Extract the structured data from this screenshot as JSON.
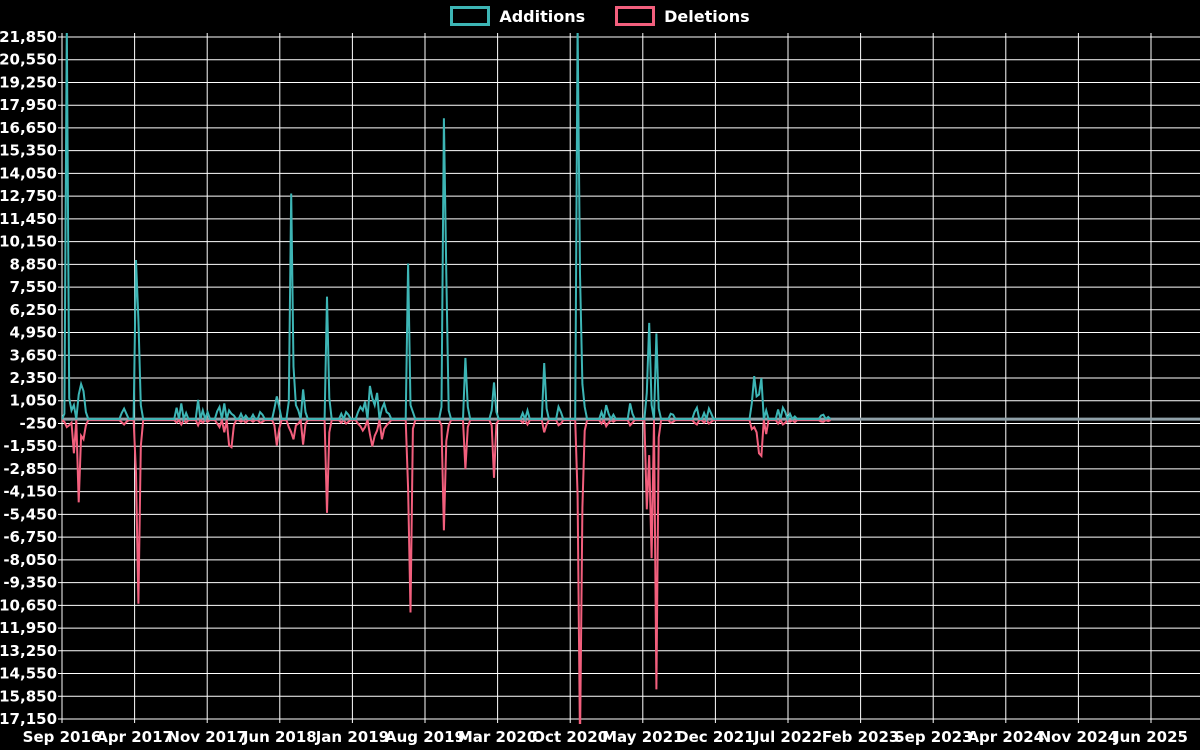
{
  "legend": [
    {
      "id": "additions",
      "label": "Additions",
      "color": "#3db5b5"
    },
    {
      "id": "deletions",
      "label": "Deletions",
      "color": "#f25f7d"
    }
  ],
  "chart_data": {
    "type": "line",
    "title": "",
    "xlabel": "",
    "ylabel": "",
    "background_color": "#000000",
    "grid_color": "#ffffff",
    "text_color": "#ffffff",
    "zero_line_color": "#8fa0a8",
    "legend_position": "top-center",
    "grid": "on",
    "x_tick_labels": [
      "Sep 2016",
      "Apr 2017",
      "Nov 2017",
      "Jun 2018",
      "Jan 2019",
      "Aug 2019",
      "Mar 2020",
      "Oct 2020",
      "May 2021",
      "Dec 2021",
      "Jul 2022",
      "Feb 2023",
      "Sep 2023",
      "Apr 2024",
      "Nov 2024",
      "Jun 2025"
    ],
    "x_tick_interval_months": 7,
    "y_ticks": [
      21850,
      20550,
      19250,
      17950,
      16650,
      15350,
      14050,
      12750,
      11450,
      10150,
      8850,
      7550,
      6250,
      4950,
      3650,
      2350,
      1050,
      -250,
      -1550,
      -2850,
      -4150,
      -5450,
      -6750,
      -8050,
      -9350,
      -10650,
      -11950,
      -13250,
      -14550,
      -15850,
      -17150
    ],
    "y_tick_labels": [
      "21,850",
      "20,550",
      "19,250",
      "17,950",
      "16,650",
      "15,350",
      "14,050",
      "12,750",
      "11,450",
      "10,150",
      "8,850",
      "7,550",
      "6,250",
      "4,950",
      "3,650",
      "2,350",
      "1,050",
      "-250",
      "-1,550",
      "-2,850",
      "-4,150",
      "-5,450",
      "-6,750",
      "-8,050",
      "-9,350",
      "-10,650",
      "-11,950",
      "-13,250",
      "-14,550",
      "-15,850",
      "-17,150"
    ],
    "ylim": [
      -17150,
      21850
    ],
    "note": "Weekly series; values beyond ylim are clipped at plot edges. Baseline is 0 between events; series data ends ~month 74, grey zero line continues to right edge.",
    "x_unit": "months_since_Sep_2016",
    "baseline_end_month": 74.2,
    "series_names": [
      "Additions",
      "Deletions"
    ],
    "columns": [
      "month_offset",
      "additions",
      "deletions"
    ],
    "events": [
      [
        0.29,
        300,
        -100
      ],
      [
        0.48,
        22500,
        -400
      ],
      [
        0.68,
        1200,
        -300
      ],
      [
        0.96,
        500,
        -150
      ],
      [
        1.25,
        800,
        -1900
      ],
      [
        1.54,
        1400,
        -4700
      ],
      [
        1.74,
        2000,
        -900
      ],
      [
        2.02,
        1600,
        -1100
      ],
      [
        2.31,
        400,
        -300
      ],
      [
        5.69,
        350,
        -120
      ],
      [
        5.98,
        600,
        -250
      ],
      [
        6.17,
        300,
        -100
      ],
      [
        7.04,
        700,
        -300
      ],
      [
        7.13,
        9100,
        -3000
      ],
      [
        7.33,
        5700,
        -10500
      ],
      [
        7.52,
        800,
        -1500
      ],
      [
        11.09,
        650,
        -150
      ],
      [
        11.47,
        900,
        -250
      ],
      [
        11.86,
        350,
        -150
      ],
      [
        13.21,
        1100,
        -300
      ],
      [
        13.6,
        500,
        -150
      ],
      [
        13.98,
        400,
        -100
      ],
      [
        14.85,
        450,
        -200
      ],
      [
        15.23,
        700,
        -400
      ],
      [
        15.62,
        900,
        -700
      ],
      [
        16.01,
        500,
        -1450
      ],
      [
        16.3,
        300,
        -1550
      ],
      [
        16.59,
        200,
        -300
      ],
      [
        17.36,
        300,
        -100
      ],
      [
        17.74,
        200,
        -150
      ],
      [
        18.32,
        250,
        -100
      ],
      [
        19.09,
        400,
        -150
      ],
      [
        19.38,
        250,
        -100
      ],
      [
        20.44,
        600,
        -300
      ],
      [
        20.73,
        1300,
        -1450
      ],
      [
        21.02,
        700,
        -500
      ],
      [
        21.89,
        1000,
        -400
      ],
      [
        22.08,
        12900,
        -700
      ],
      [
        22.27,
        3000,
        -1100
      ],
      [
        22.56,
        800,
        -300
      ],
      [
        22.85,
        500,
        -200
      ],
      [
        23.14,
        1700,
        -1400
      ],
      [
        23.43,
        400,
        -200
      ],
      [
        25.46,
        900,
        -400
      ],
      [
        25.65,
        7000,
        -5300
      ],
      [
        25.84,
        1200,
        -700
      ],
      [
        26.9,
        300,
        -150
      ],
      [
        27.29,
        400,
        -200
      ],
      [
        27.67,
        250,
        -100
      ],
      [
        28.45,
        400,
        -200
      ],
      [
        28.73,
        700,
        -350
      ],
      [
        29.02,
        500,
        -600
      ],
      [
        29.31,
        1000,
        -400
      ],
      [
        29.6,
        1900,
        -800
      ],
      [
        29.89,
        1200,
        -1500
      ],
      [
        30.18,
        800,
        -900
      ],
      [
        30.47,
        1500,
        -600
      ],
      [
        30.76,
        600,
        -1100
      ],
      [
        31.05,
        900,
        -500
      ],
      [
        31.34,
        400,
        -300
      ],
      [
        31.63,
        300,
        -150
      ],
      [
        33.27,
        600,
        -300
      ],
      [
        33.46,
        8900,
        -3900
      ],
      [
        33.65,
        800,
        -11000
      ],
      [
        33.85,
        400,
        -500
      ],
      [
        36.64,
        700,
        -300
      ],
      [
        36.83,
        17200,
        -6300
      ],
      [
        37.03,
        8300,
        -1200
      ],
      [
        37.22,
        500,
        -300
      ],
      [
        38.96,
        3500,
        -2800
      ],
      [
        39.15,
        700,
        -400
      ],
      [
        41.46,
        500,
        -300
      ],
      [
        41.66,
        2100,
        -3300
      ],
      [
        41.85,
        400,
        -200
      ],
      [
        44.35,
        350,
        -150
      ],
      [
        44.84,
        500,
        -250
      ],
      [
        46.38,
        1200,
        -400
      ],
      [
        46.57,
        3200,
        -700
      ],
      [
        46.77,
        600,
        -250
      ],
      [
        47.83,
        700,
        -300
      ],
      [
        48.12,
        400,
        -200
      ],
      [
        49.66,
        600,
        -400
      ],
      [
        49.8,
        22500,
        -4300
      ],
      [
        49.95,
        8300,
        -18500
      ],
      [
        50.14,
        2000,
        -5000
      ],
      [
        50.33,
        700,
        -600
      ],
      [
        52.07,
        400,
        -200
      ],
      [
        52.45,
        800,
        -350
      ],
      [
        52.74,
        300,
        -150
      ],
      [
        53.22,
        250,
        -100
      ],
      [
        54.77,
        900,
        -300
      ],
      [
        55.06,
        300,
        -150
      ],
      [
        56.31,
        500,
        -400
      ],
      [
        56.5,
        1500,
        -5100
      ],
      [
        56.7,
        5500,
        -2000
      ],
      [
        56.89,
        800,
        -7900
      ],
      [
        57.27,
        4900,
        -15400
      ],
      [
        57.47,
        600,
        -1000
      ],
      [
        58.62,
        300,
        -150
      ],
      [
        59.01,
        250,
        -100
      ],
      [
        60.94,
        400,
        -150
      ],
      [
        61.23,
        650,
        -250
      ],
      [
        61.81,
        350,
        -150
      ],
      [
        62.29,
        600,
        -200
      ],
      [
        62.58,
        300,
        -100
      ],
      [
        66.53,
        900,
        -520
      ],
      [
        66.73,
        2460,
        -400
      ],
      [
        67.02,
        1300,
        -700
      ],
      [
        67.3,
        1400,
        -1900
      ],
      [
        67.5,
        2340,
        -2050
      ],
      [
        67.79,
        500,
        -800
      ],
      [
        69.04,
        550,
        -200
      ],
      [
        69.43,
        650,
        -250
      ],
      [
        69.81,
        400,
        -150
      ],
      [
        70.2,
        300,
        -100
      ],
      [
        70.68,
        150,
        -120
      ],
      [
        73.09,
        200,
        -80
      ],
      [
        73.48,
        250,
        -100
      ],
      [
        73.86,
        120,
        -60
      ]
    ]
  }
}
